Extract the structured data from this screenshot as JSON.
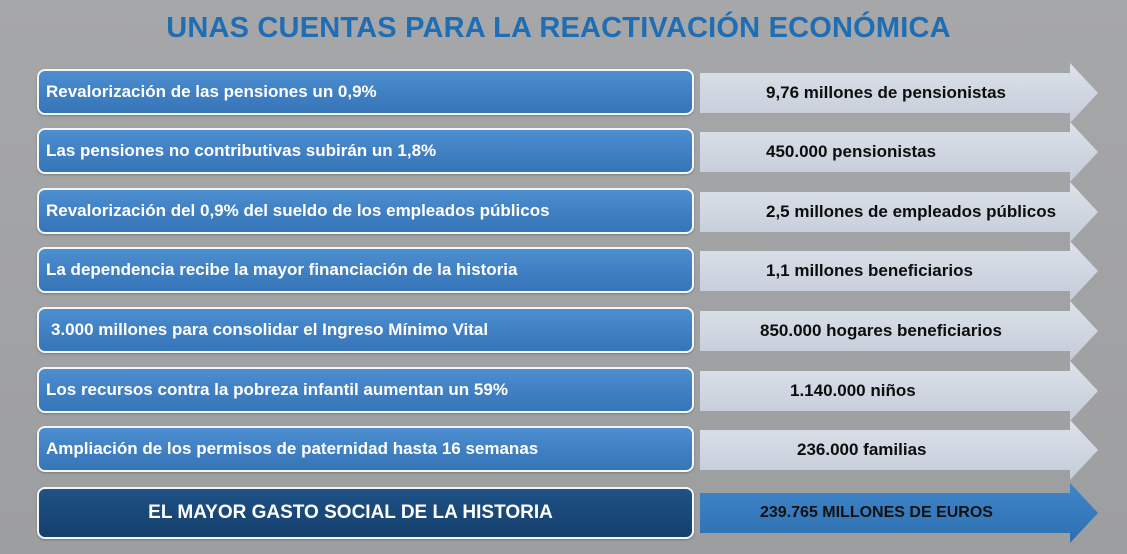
{
  "title": "UNAS CUENTAS PARA LA REACTIVACIÓN ECONÓMICA",
  "colors": {
    "title": "#1e6db5",
    "box": "#3f7fc2",
    "final_box": "#1a4a7c",
    "arrow": "#d0d7e2",
    "final_arrow": "#3a7fc3"
  },
  "rows": [
    {
      "measure": "Revalorización de las pensiones un 0,9%",
      "beneficiaries": "9,76 millones de pensionistas"
    },
    {
      "measure": "Las pensiones no contributivas subirán un 1,8%",
      "beneficiaries": "450.000 pensionistas"
    },
    {
      "measure": "Revalorización del 0,9% del sueldo de los empleados públicos",
      "beneficiaries": "2,5 millones de empleados públicos"
    },
    {
      "measure": "La dependencia recibe la mayor financiación de la historia",
      "beneficiaries": "1,1 millones beneficiarios"
    },
    {
      "measure": "3.000 millones para consolidar el Ingreso Mínimo Vital",
      "beneficiaries": "850.000 hogares beneficiarios"
    },
    {
      "measure": "Los recursos contra la pobreza infantil aumentan un 59%",
      "beneficiaries": "1.140.000 niños"
    },
    {
      "measure": "Ampliación de los permisos de paternidad hasta 16 semanas",
      "beneficiaries": "236.000 familias"
    }
  ],
  "summary": {
    "label": "EL MAYOR GASTO SOCIAL DE LA HISTORIA",
    "value": "239.765 MILLONES DE EUROS"
  }
}
